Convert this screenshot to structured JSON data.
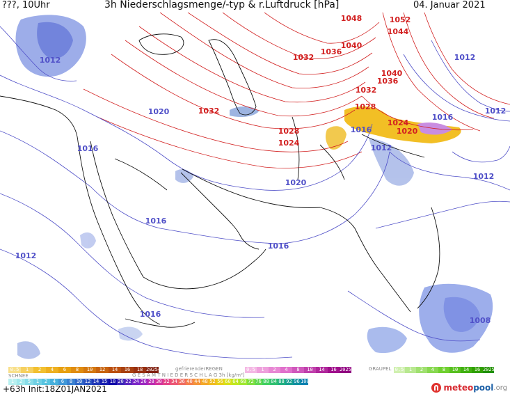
{
  "header": {
    "left": "???, 10Uhr",
    "title": "3h Niederschlagsmenge/-typ & r.Luftdruck [hPa]",
    "date": "04. Januar 2021"
  },
  "colors": {
    "high_pressure_isobar": "#d22020",
    "low_pressure_isobar": "#5050c8",
    "border": "#000000",
    "snow_precip": "#8c9fe6",
    "mixed_precip": "#f0b400"
  },
  "map": {
    "isobar_labels": [
      {
        "id": "iso-1048",
        "text": "1048",
        "type": "high"
      },
      {
        "id": "iso-1052",
        "text": "1052",
        "type": "high"
      },
      {
        "id": "iso-1044",
        "text": "1044",
        "type": "high"
      },
      {
        "id": "iso-1040-n",
        "text": "1040",
        "type": "high"
      },
      {
        "id": "iso-1036-n",
        "text": "1036",
        "type": "high"
      },
      {
        "id": "iso-1032-n",
        "text": "1032",
        "type": "high"
      },
      {
        "id": "iso-1040-e",
        "text": "1040",
        "type": "high"
      },
      {
        "id": "iso-1036-e",
        "text": "1036",
        "type": "high"
      },
      {
        "id": "iso-1032-e",
        "text": "1032",
        "type": "high"
      },
      {
        "id": "iso-1028-e",
        "text": "1028",
        "type": "high"
      },
      {
        "id": "iso-1024-e",
        "text": "1024",
        "type": "high"
      },
      {
        "id": "iso-1032-w",
        "text": "1032",
        "type": "high"
      },
      {
        "id": "iso-1028-c",
        "text": "1028",
        "type": "high"
      },
      {
        "id": "iso-1024-c",
        "text": "1024",
        "type": "high"
      },
      {
        "id": "iso-1020-e",
        "text": "1020",
        "type": "high"
      },
      {
        "id": "iso-1012-nw",
        "text": "1012",
        "type": "low"
      },
      {
        "id": "iso-1020-w",
        "text": "1020",
        "type": "low"
      },
      {
        "id": "iso-1016-w",
        "text": "1016",
        "type": "low"
      },
      {
        "id": "iso-1020-c",
        "text": "1020",
        "type": "low"
      },
      {
        "id": "iso-1016-c",
        "text": "1016",
        "type": "low"
      },
      {
        "id": "iso-1012-sw",
        "text": "1012",
        "type": "low"
      },
      {
        "id": "iso-1016-ar",
        "text": "1016",
        "type": "low"
      },
      {
        "id": "iso-1016-s",
        "text": "1016",
        "type": "low"
      },
      {
        "id": "iso-1016-in",
        "text": "1016",
        "type": "low"
      },
      {
        "id": "iso-1016-ne",
        "text": "1016",
        "type": "low"
      },
      {
        "id": "iso-1012-in",
        "text": "1012",
        "type": "low"
      },
      {
        "id": "iso-1012-e",
        "text": "1012",
        "type": "low"
      },
      {
        "id": "iso-1012-ne",
        "text": "1012",
        "type": "low"
      },
      {
        "id": "iso-1012-ene",
        "text": "1012",
        "type": "low"
      },
      {
        "id": "iso-1008",
        "text": "1008",
        "type": "low"
      }
    ]
  },
  "legend": {
    "schnee_label": "SCHNEE",
    "schnee_values": [
      "1",
      "2",
      "5",
      "1",
      "2",
      "4",
      "6",
      "8",
      "10",
      "12",
      "14",
      "15",
      "18"
    ],
    "regen_label": "gefrierenderREGEN",
    "regen_values": [
      "0.5",
      "1",
      "2",
      "4",
      "8",
      "10",
      "14",
      "16",
      "2025+"
    ],
    "graupel_label": "GRAUPEL",
    "graupel_values": [
      "0.5",
      "1",
      "2",
      "4",
      "8",
      "10",
      "14",
      "16",
      "2025+"
    ],
    "mix_values": [
      "0.5",
      "1",
      "2",
      "4",
      "6",
      "8",
      "10",
      "12",
      "14",
      "16",
      "18",
      "2025+"
    ],
    "total_values": [
      "20",
      "22",
      "24",
      "26",
      "28",
      "30",
      "32",
      "34",
      "36",
      "40",
      "44",
      "48",
      "52",
      "56",
      "60",
      "64",
      "68",
      "72",
      "76",
      "80",
      "84",
      "88",
      "92",
      "96",
      "100"
    ],
    "total_label": "G E S A M T N I E D E R S C H L A G   3h   [kg/m²]"
  },
  "footer": {
    "forecast": "+63h",
    "init": "Init:18Z01JAN2021",
    "brand_a": "meteo",
    "brand_b": "pool",
    "brand_c": ".org"
  }
}
